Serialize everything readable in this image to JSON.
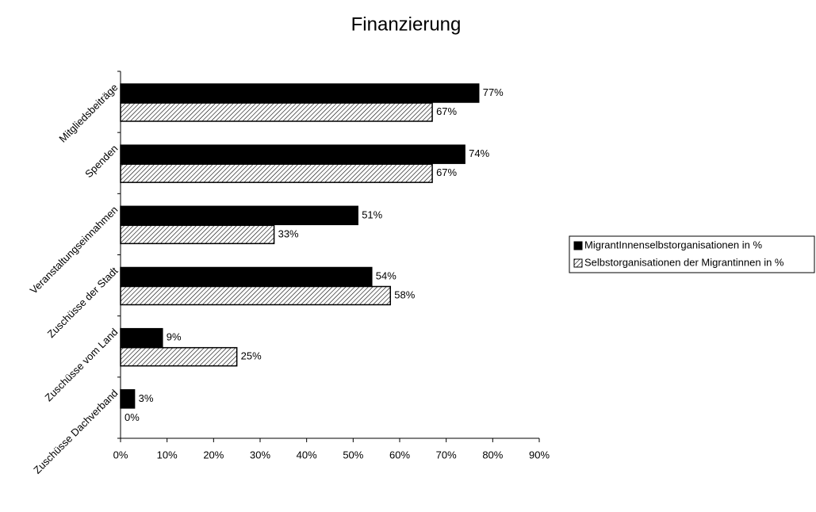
{
  "chart_data": {
    "type": "hbar",
    "title": "Finanzierung",
    "categories": [
      "Mitgliedsbeiträge",
      "Spenden",
      "Veranstaltungseinnahmen",
      "Zuschüsse der Stadt",
      "Zuschüsse vom Land",
      "Zuschüsse Dachverband"
    ],
    "series": [
      {
        "name": "MigrantInnenselbstorganisationen in %",
        "color": "#000000",
        "values": [
          77,
          74,
          51,
          54,
          9,
          3
        ],
        "value_labels": [
          "77%",
          "74%",
          "51%",
          "54%",
          "9%",
          "3%"
        ]
      },
      {
        "name": "Selbstorganisationen der Migrantinnen in %",
        "color": "#ffffff",
        "pattern": "hatch",
        "values": [
          67,
          67,
          33,
          58,
          25,
          0
        ],
        "value_labels": [
          "67%",
          "67%",
          "33%",
          "58%",
          "25%",
          "0%"
        ]
      }
    ],
    "xlim": [
      0,
      90
    ],
    "xticks": [
      {
        "value": 0,
        "label": "0%"
      },
      {
        "value": 10,
        "label": "10%"
      },
      {
        "value": 20,
        "label": "20%"
      },
      {
        "value": 30,
        "label": "30%"
      },
      {
        "value": 40,
        "label": "40%"
      },
      {
        "value": 50,
        "label": "50%"
      },
      {
        "value": 60,
        "label": "60%"
      },
      {
        "value": 70,
        "label": "70%"
      },
      {
        "value": 80,
        "label": "80%"
      },
      {
        "value": 90,
        "label": "90%"
      }
    ],
    "grid": false,
    "legend": "right"
  }
}
